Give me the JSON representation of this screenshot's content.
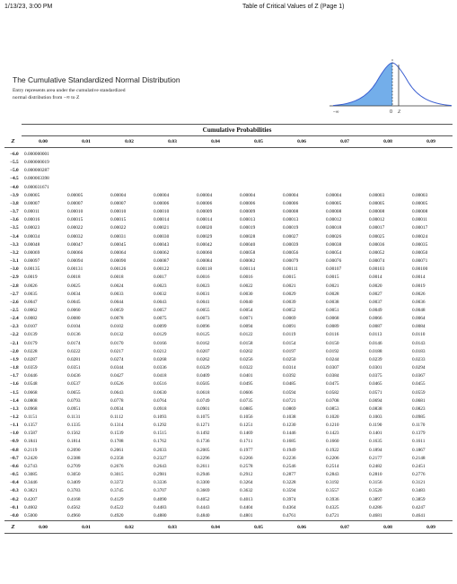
{
  "header": {
    "datetime": "1/13/23, 3:00 PM",
    "page_title": "Table of Critical Values of Z (Page 1)"
  },
  "intro": {
    "title": "The Cumulative Standardized Normal Distribution",
    "desc_line1": "Entry represents area under the cumulative standardized",
    "desc_line2": "normal distribution from −∞ to Z"
  },
  "figure": {
    "mean_label": "0",
    "z_label": "Z",
    "neg_inf": "−∞",
    "curve_color": "#3b5fd1",
    "shade_color": "#5aa0e6"
  },
  "table": {
    "caption": "Cumulative Probabilities",
    "z_header": "Z",
    "columns": [
      "0.00",
      "0.01",
      "0.02",
      "0.03",
      "0.04",
      "0.05",
      "0.06",
      "0.07",
      "0.08",
      "0.09"
    ],
    "rows": [
      [
        "−6.0",
        "0.000000001"
      ],
      [
        "−5.5",
        "0.000000019"
      ],
      [
        "−5.0",
        "0.000000287"
      ],
      [
        "−4.5",
        "0.000003398"
      ],
      [
        "−4.0",
        "0.000031671"
      ],
      [
        "−3.9",
        "0.00005",
        "0.00005",
        "0.00004",
        "0.00004",
        "0.00004",
        "0.00004",
        "0.00004",
        "0.00004",
        "0.00003",
        "0.00003"
      ],
      [
        "−3.8",
        "0.00007",
        "0.00007",
        "0.00007",
        "0.00006",
        "0.00006",
        "0.00006",
        "0.00006",
        "0.00005",
        "0.00005",
        "0.00005"
      ],
      [
        "−3.7",
        "0.00011",
        "0.00010",
        "0.00010",
        "0.00010",
        "0.00009",
        "0.00009",
        "0.00008",
        "0.00008",
        "0.00008",
        "0.00008"
      ],
      [
        "−3.6",
        "0.00016",
        "0.00015",
        "0.00015",
        "0.00014",
        "0.00014",
        "0.00013",
        "0.00013",
        "0.00012",
        "0.00012",
        "0.00011"
      ],
      [
        "−3.5",
        "0.00023",
        "0.00022",
        "0.00022",
        "0.00021",
        "0.00020",
        "0.00019",
        "0.00019",
        "0.00018",
        "0.00017",
        "0.00017"
      ],
      [
        "−3.4",
        "0.00034",
        "0.00032",
        "0.00031",
        "0.00030",
        "0.00029",
        "0.00028",
        "0.00027",
        "0.00026",
        "0.00025",
        "0.00024"
      ],
      [
        "−3.3",
        "0.00048",
        "0.00047",
        "0.00045",
        "0.00043",
        "0.00042",
        "0.00040",
        "0.00039",
        "0.00038",
        "0.00036",
        "0.00035"
      ],
      [
        "−3.2",
        "0.00069",
        "0.00066",
        "0.00064",
        "0.00062",
        "0.00060",
        "0.00058",
        "0.00056",
        "0.00054",
        "0.00052",
        "0.00050"
      ],
      [
        "−3.1",
        "0.00097",
        "0.00094",
        "0.00090",
        "0.00087",
        "0.00084",
        "0.00082",
        "0.00079",
        "0.00076",
        "0.00074",
        "0.00071"
      ],
      [
        "−3.0",
        "0.00135",
        "0.00131",
        "0.00126",
        "0.00122",
        "0.00118",
        "0.00114",
        "0.00111",
        "0.00107",
        "0.00103",
        "0.00100"
      ],
      [
        "−2.9",
        "0.0019",
        "0.0018",
        "0.0018",
        "0.0017",
        "0.0016",
        "0.0016",
        "0.0015",
        "0.0015",
        "0.0014",
        "0.0014"
      ],
      [
        "−2.8",
        "0.0026",
        "0.0025",
        "0.0024",
        "0.0023",
        "0.0023",
        "0.0022",
        "0.0021",
        "0.0021",
        "0.0020",
        "0.0019"
      ],
      [
        "−2.7",
        "0.0035",
        "0.0034",
        "0.0033",
        "0.0032",
        "0.0031",
        "0.0030",
        "0.0029",
        "0.0028",
        "0.0027",
        "0.0026"
      ],
      [
        "−2.6",
        "0.0047",
        "0.0045",
        "0.0044",
        "0.0043",
        "0.0041",
        "0.0040",
        "0.0039",
        "0.0038",
        "0.0037",
        "0.0036"
      ],
      [
        "−2.5",
        "0.0062",
        "0.0060",
        "0.0059",
        "0.0057",
        "0.0055",
        "0.0054",
        "0.0052",
        "0.0051",
        "0.0049",
        "0.0048"
      ],
      [
        "−2.4",
        "0.0082",
        "0.0080",
        "0.0078",
        "0.0075",
        "0.0073",
        "0.0071",
        "0.0069",
        "0.0068",
        "0.0066",
        "0.0064"
      ],
      [
        "−2.3",
        "0.0107",
        "0.0104",
        "0.0102",
        "0.0099",
        "0.0096",
        "0.0094",
        "0.0091",
        "0.0089",
        "0.0087",
        "0.0084"
      ],
      [
        "−2.2",
        "0.0139",
        "0.0136",
        "0.0132",
        "0.0129",
        "0.0125",
        "0.0122",
        "0.0119",
        "0.0116",
        "0.0113",
        "0.0110"
      ],
      [
        "−2.1",
        "0.0179",
        "0.0174",
        "0.0170",
        "0.0166",
        "0.0162",
        "0.0158",
        "0.0154",
        "0.0150",
        "0.0146",
        "0.0143"
      ],
      [
        "−2.0",
        "0.0228",
        "0.0222",
        "0.0217",
        "0.0212",
        "0.0207",
        "0.0202",
        "0.0197",
        "0.0192",
        "0.0188",
        "0.0183"
      ],
      [
        "−1.9",
        "0.0287",
        "0.0281",
        "0.0274",
        "0.0268",
        "0.0262",
        "0.0256",
        "0.0250",
        "0.0244",
        "0.0239",
        "0.0233"
      ],
      [
        "−1.8",
        "0.0359",
        "0.0351",
        "0.0344",
        "0.0336",
        "0.0329",
        "0.0322",
        "0.0314",
        "0.0307",
        "0.0301",
        "0.0294"
      ],
      [
        "−1.7",
        "0.0446",
        "0.0436",
        "0.0427",
        "0.0418",
        "0.0409",
        "0.0401",
        "0.0392",
        "0.0384",
        "0.0375",
        "0.0367"
      ],
      [
        "−1.6",
        "0.0548",
        "0.0537",
        "0.0526",
        "0.0516",
        "0.0505",
        "0.0495",
        "0.0485",
        "0.0475",
        "0.0465",
        "0.0455"
      ],
      [
        "−1.5",
        "0.0668",
        "0.0655",
        "0.0643",
        "0.0630",
        "0.0618",
        "0.0606",
        "0.0594",
        "0.0582",
        "0.0571",
        "0.0559"
      ],
      [
        "−1.4",
        "0.0808",
        "0.0793",
        "0.0778",
        "0.0764",
        "0.0749",
        "0.0735",
        "0.0721",
        "0.0708",
        "0.0694",
        "0.0681"
      ],
      [
        "−1.3",
        "0.0968",
        "0.0951",
        "0.0934",
        "0.0918",
        "0.0901",
        "0.0885",
        "0.0869",
        "0.0853",
        "0.0838",
        "0.0823"
      ],
      [
        "−1.2",
        "0.1151",
        "0.1131",
        "0.1112",
        "0.1093",
        "0.1075",
        "0.1056",
        "0.1038",
        "0.1020",
        "0.1003",
        "0.0985"
      ],
      [
        "−1.1",
        "0.1357",
        "0.1335",
        "0.1314",
        "0.1292",
        "0.1271",
        "0.1251",
        "0.1230",
        "0.1210",
        "0.1190",
        "0.1170"
      ],
      [
        "−1.0",
        "0.1587",
        "0.1562",
        "0.1539",
        "0.1515",
        "0.1492",
        "0.1469",
        "0.1446",
        "0.1423",
        "0.1401",
        "0.1379"
      ],
      [
        "−0.9",
        "0.1841",
        "0.1814",
        "0.1788",
        "0.1762",
        "0.1736",
        "0.1711",
        "0.1685",
        "0.1660",
        "0.1635",
        "0.1611"
      ],
      [
        "−0.8",
        "0.2119",
        "0.2090",
        "0.2061",
        "0.2033",
        "0.2005",
        "0.1977",
        "0.1949",
        "0.1922",
        "0.1894",
        "0.1867"
      ],
      [
        "−0.7",
        "0.2420",
        "0.2388",
        "0.2358",
        "0.2327",
        "0.2296",
        "0.2266",
        "0.2236",
        "0.2206",
        "0.2177",
        "0.2148"
      ],
      [
        "−0.6",
        "0.2743",
        "0.2709",
        "0.2676",
        "0.2643",
        "0.2611",
        "0.2578",
        "0.2546",
        "0.2514",
        "0.2482",
        "0.2451"
      ],
      [
        "−0.5",
        "0.3085",
        "0.3050",
        "0.3015",
        "0.2981",
        "0.2946",
        "0.2912",
        "0.2877",
        "0.2843",
        "0.2810",
        "0.2776"
      ],
      [
        "−0.4",
        "0.3446",
        "0.3409",
        "0.3372",
        "0.3336",
        "0.3300",
        "0.3264",
        "0.3228",
        "0.3192",
        "0.3156",
        "0.3121"
      ],
      [
        "−0.3",
        "0.3821",
        "0.3783",
        "0.3745",
        "0.3707",
        "0.3669",
        "0.3632",
        "0.3594",
        "0.3557",
        "0.3520",
        "0.3483"
      ],
      [
        "−0.2",
        "0.4207",
        "0.4168",
        "0.4129",
        "0.4090",
        "0.4052",
        "0.4013",
        "0.3974",
        "0.3936",
        "0.3897",
        "0.3859"
      ],
      [
        "−0.1",
        "0.4602",
        "0.4562",
        "0.4522",
        "0.4483",
        "0.4443",
        "0.4404",
        "0.4364",
        "0.4325",
        "0.4286",
        "0.4247"
      ],
      [
        "−0.0",
        "0.5000",
        "0.4960",
        "0.4920",
        "0.4880",
        "0.4840",
        "0.4801",
        "0.4761",
        "0.4721",
        "0.4681",
        "0.4641"
      ]
    ]
  }
}
